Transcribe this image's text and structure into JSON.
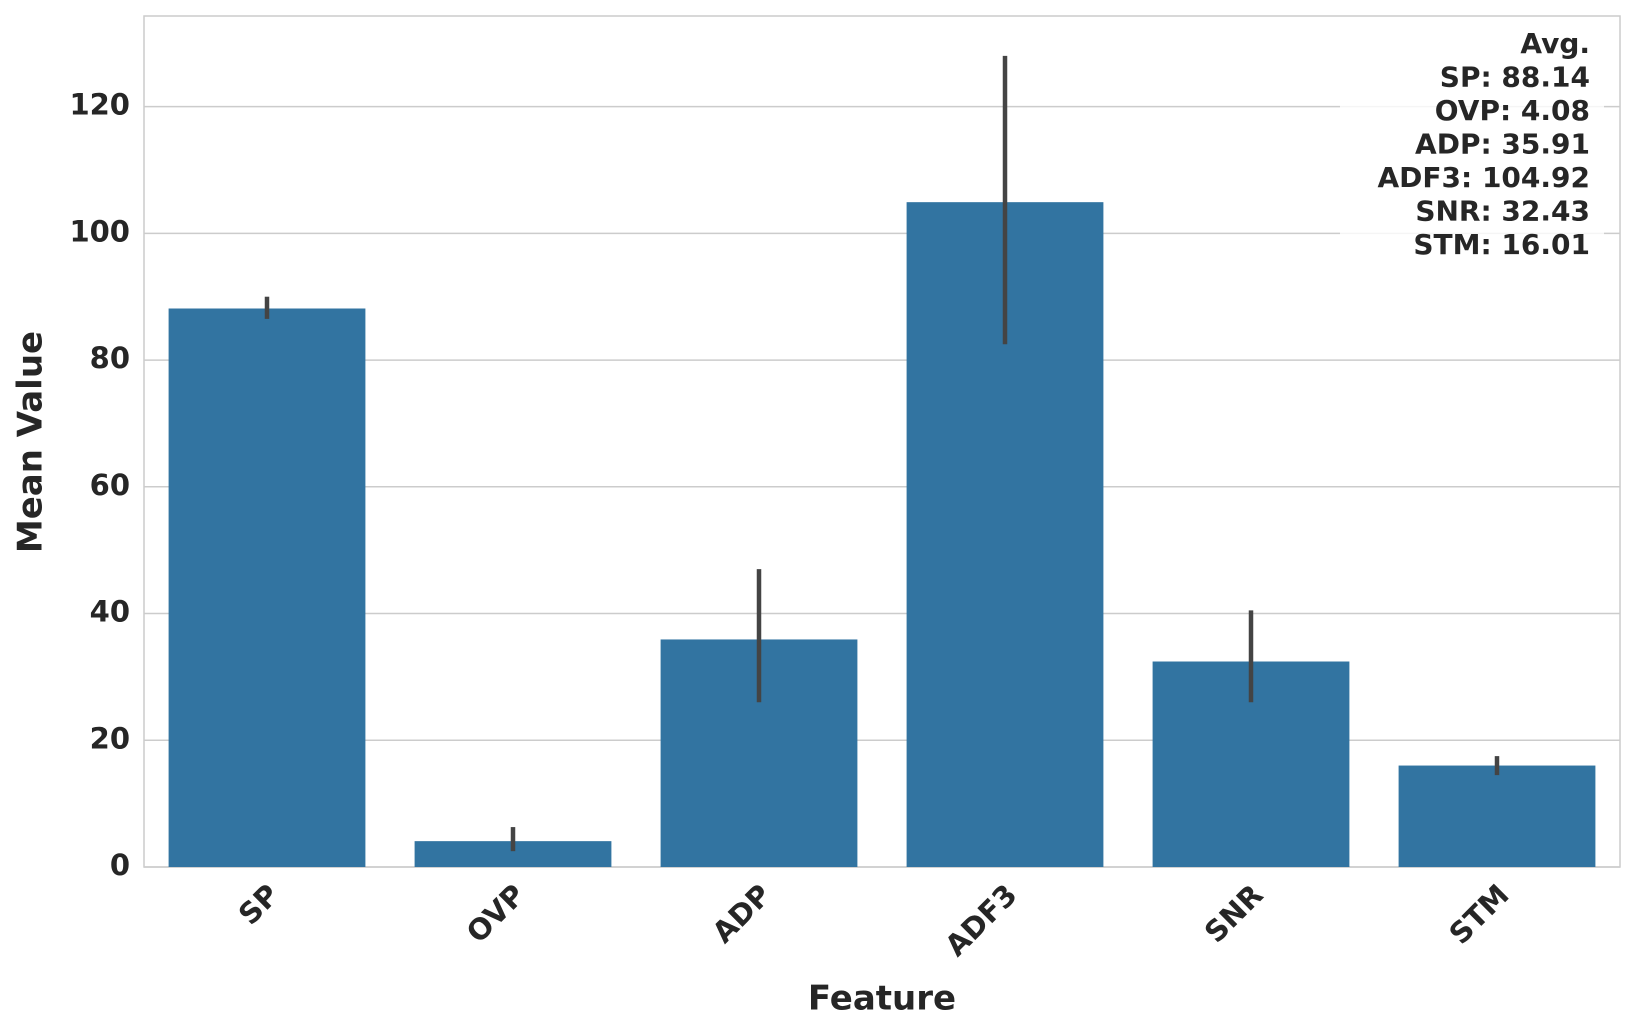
{
  "chart_data": {
    "type": "bar",
    "x_label": "Feature",
    "y_label": "Mean Value",
    "categories": [
      "SP",
      "OVP",
      "ADP",
      "ADF3",
      "SNR",
      "STM"
    ],
    "values": [
      88.14,
      4.08,
      35.91,
      104.92,
      32.43,
      16.01
    ],
    "error_low": [
      86.5,
      2.5,
      26,
      82.5,
      26,
      14.5
    ],
    "error_high": [
      90,
      6.3,
      47,
      128,
      40.5,
      17.5
    ],
    "color": "#3274a1",
    "error_color": "#444444",
    "ylim": [
      0,
      134.3
    ],
    "yticks": [
      0,
      20,
      40,
      60,
      80,
      100,
      120
    ],
    "grid": true,
    "annotation": [
      "Avg.",
      "SP: 88.14",
      "OVP: 4.08",
      "ADP: 35.91",
      "ADF3: 104.92",
      "SNR: 32.43",
      "STM: 16.01"
    ]
  }
}
